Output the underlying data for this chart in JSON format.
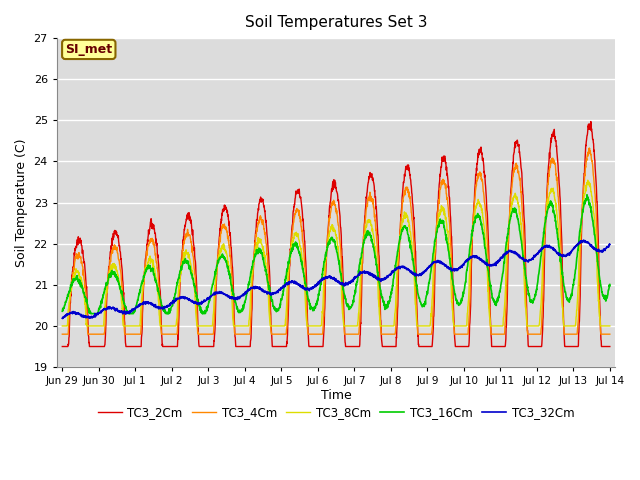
{
  "title": "Soil Temperatures Set 3",
  "ylabel": "Soil Temperature (C)",
  "xlabel": "Time",
  "ylim": [
    19.0,
    27.0
  ],
  "yticks": [
    19.0,
    20.0,
    21.0,
    22.0,
    23.0,
    24.0,
    25.0,
    26.0,
    27.0
  ],
  "bg_color": "#dcdcdc",
  "fig_color": "#ffffff",
  "series_colors": {
    "TC3_2Cm": "#dd0000",
    "TC3_4Cm": "#ff8800",
    "TC3_8Cm": "#dddd00",
    "TC3_16Cm": "#00cc00",
    "TC3_32Cm": "#0000cc"
  },
  "xtick_labels": [
    "Jun 29",
    "Jun 30",
    "Jul 1",
    "Jul 2",
    "Jul 3",
    "Jul 4",
    "Jul 5",
    "Jul 6",
    "Jul 7",
    "Jul 8",
    "Jul 9",
    "Jul 10",
    "Jul 11",
    "Jul 12",
    "Jul 13",
    "Jul 14"
  ],
  "annotation_text": "SI_met",
  "annotation_bg": "#ffff99",
  "annotation_border": "#886600"
}
